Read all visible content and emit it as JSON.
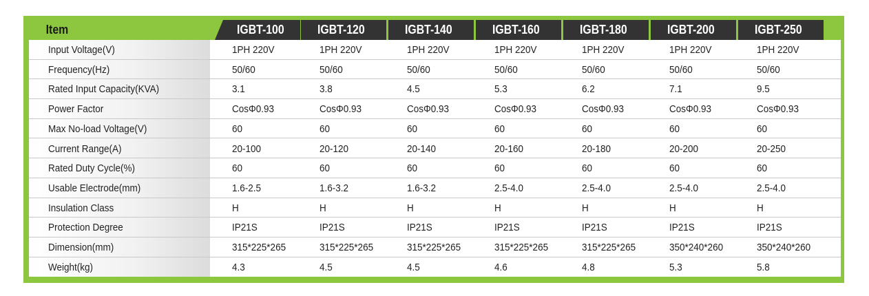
{
  "table": {
    "header_label": "Item",
    "models": [
      "IGBT-100",
      "IGBT-120",
      "IGBT-140",
      "IGBT-160",
      "IGBT-180",
      "IGBT-200",
      "IGBT-250"
    ],
    "rows": [
      {
        "label": "Input Voltage(V)",
        "values": [
          "1PH 220V",
          "1PH 220V",
          "1PH 220V",
          "1PH 220V",
          "1PH 220V",
          "1PH 220V",
          "1PH 220V"
        ]
      },
      {
        "label": "Frequency(Hz)",
        "values": [
          "50/60",
          "50/60",
          "50/60",
          "50/60",
          "50/60",
          "50/60",
          "50/60"
        ]
      },
      {
        "label": "Rated Input Capacity(KVA)",
        "values": [
          "3.1",
          "3.8",
          "4.5",
          "5.3",
          "6.2",
          "7.1",
          "9.5"
        ]
      },
      {
        "label": "Power Factor",
        "values": [
          "CosΦ0.93",
          "CosΦ0.93",
          "CosΦ0.93",
          "CosΦ0.93",
          "CosΦ0.93",
          "CosΦ0.93",
          "CosΦ0.93"
        ]
      },
      {
        "label": "Max No-load Voltage(V)",
        "values": [
          "60",
          "60",
          "60",
          "60",
          "60",
          "60",
          "60"
        ]
      },
      {
        "label": "Current Range(A)",
        "values": [
          "20-100",
          "20-120",
          "20-140",
          "20-160",
          "20-180",
          "20-200",
          "20-250"
        ]
      },
      {
        "label": "Rated Duty Cycle(%)",
        "values": [
          "60",
          "60",
          "60",
          "60",
          "60",
          "60",
          "60"
        ]
      },
      {
        "label": "Usable Electrode(mm)",
        "values": [
          "1.6-2.5",
          "1.6-3.2",
          "1.6-3.2",
          "2.5-4.0",
          "2.5-4.0",
          "2.5-4.0",
          "2.5-4.0"
        ]
      },
      {
        "label": "Insulation Class",
        "values": [
          "H",
          "H",
          "H",
          "H",
          "H",
          "H",
          "H"
        ]
      },
      {
        "label": "Protection Degree",
        "values": [
          "IP21S",
          "IP21S",
          "IP21S",
          "IP21S",
          "IP21S",
          "IP21S",
          "IP21S"
        ]
      },
      {
        "label": "Dimension(mm)",
        "values": [
          "315*225*265",
          "315*225*265",
          "315*225*265",
          "315*225*265",
          "315*225*265",
          "350*240*260",
          "350*240*260"
        ]
      },
      {
        "label": "Weight(kg)",
        "values": [
          "4.3",
          "4.5",
          "4.5",
          "4.6",
          "4.8",
          "5.3",
          "5.8"
        ]
      }
    ]
  }
}
